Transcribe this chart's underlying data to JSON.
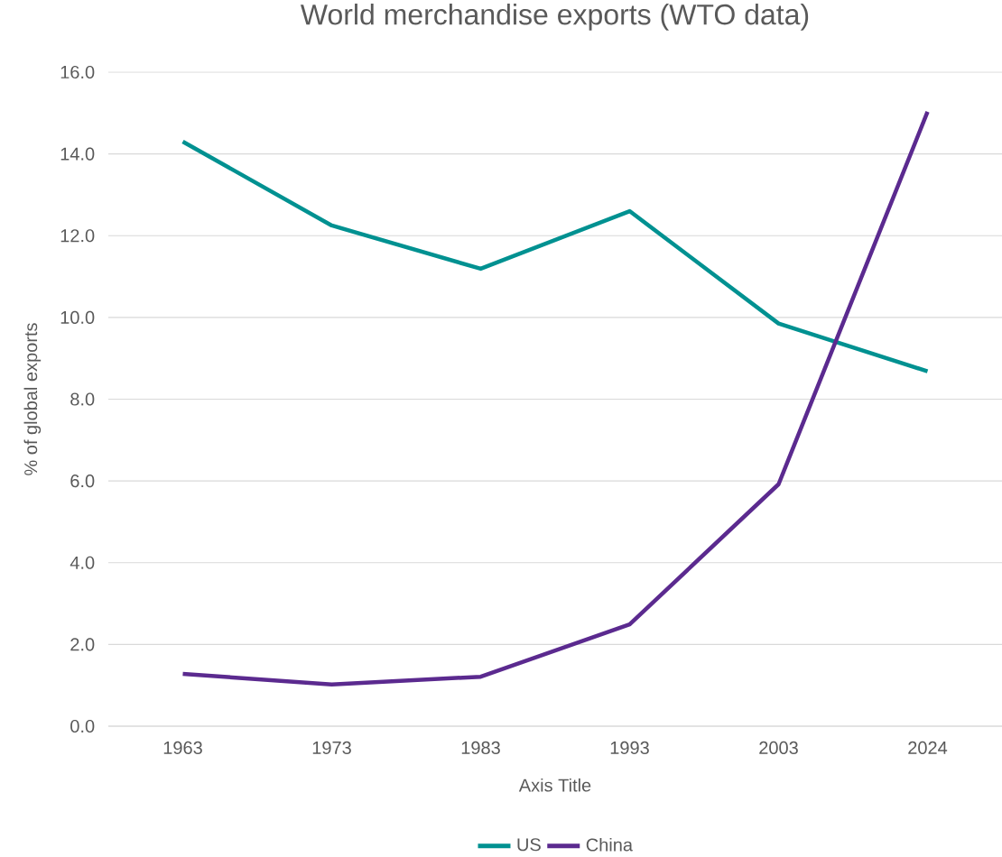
{
  "chart_data": {
    "type": "line",
    "title": "World merchandise exports (WTO data)",
    "xlabel": "Axis Title",
    "ylabel": "% of global exports",
    "categories": [
      "1963",
      "1973",
      "1983",
      "1993",
      "2003",
      "2024"
    ],
    "series": [
      {
        "name": "US",
        "color": "#009191",
        "values": [
          14.3,
          12.25,
          11.19,
          12.6,
          9.85,
          8.68
        ]
      },
      {
        "name": "China",
        "color": "#5b2a8f",
        "values": [
          1.28,
          1.02,
          1.21,
          2.49,
          5.92,
          15.03
        ]
      }
    ],
    "ylim": [
      0,
      16
    ],
    "yticks": [
      {
        "value": 0,
        "label": "0.0"
      },
      {
        "value": 2,
        "label": "2.0"
      },
      {
        "value": 4,
        "label": "4.0"
      },
      {
        "value": 6,
        "label": "6.0"
      },
      {
        "value": 8,
        "label": "8.0"
      },
      {
        "value": 10,
        "label": "10.0"
      },
      {
        "value": 12,
        "label": "12.0"
      },
      {
        "value": 14,
        "label": "14.0"
      },
      {
        "value": 16,
        "label": "16.0"
      }
    ],
    "grid": "y",
    "legend": "bottom"
  }
}
